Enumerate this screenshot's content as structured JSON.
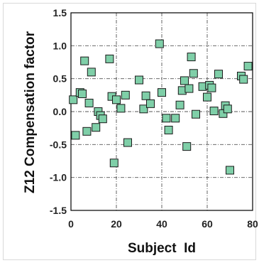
{
  "chart_data": {
    "type": "scatter",
    "title": "",
    "xlabel": "Subject  Id",
    "ylabel": "Z12 Compensation factor",
    "xlim": [
      0,
      80
    ],
    "ylim": [
      -1.5,
      1.5
    ],
    "x_ticks": [
      "0",
      "20",
      "40",
      "60",
      "80"
    ],
    "y_ticks": [
      "1.5",
      "1.0",
      "0.5",
      "0.0",
      "-0.5",
      "-1.0",
      "-1.5"
    ],
    "x_tick_values": [
      0,
      20,
      40,
      60,
      80
    ],
    "y_tick_values": [
      1.5,
      1.0,
      0.5,
      0.0,
      -0.5,
      -1.0,
      -1.5
    ],
    "grid": true,
    "grid_style": "dash-dot",
    "legend": "none",
    "marker": "square",
    "marker_fill": "#7fcfa8",
    "marker_edge": "#1a1a1a",
    "points": [
      {
        "x": 1,
        "y": 0.18
      },
      {
        "x": 2,
        "y": -0.36
      },
      {
        "x": 4,
        "y": 0.29
      },
      {
        "x": 5,
        "y": 0.27
      },
      {
        "x": 6,
        "y": 0.77
      },
      {
        "x": 7,
        "y": -0.3
      },
      {
        "x": 8,
        "y": 0.13
      },
      {
        "x": 9,
        "y": 0.6
      },
      {
        "x": 11,
        "y": -0.24
      },
      {
        "x": 12,
        "y": 0.0
      },
      {
        "x": 13,
        "y": -0.06
      },
      {
        "x": 14,
        "y": -0.11
      },
      {
        "x": 17,
        "y": 0.8
      },
      {
        "x": 18,
        "y": 0.23
      },
      {
        "x": 19,
        "y": -0.78
      },
      {
        "x": 20,
        "y": 0.18
      },
      {
        "x": 22,
        "y": 0.05
      },
      {
        "x": 24,
        "y": 0.25
      },
      {
        "x": 25,
        "y": -0.47
      },
      {
        "x": 30,
        "y": 0.48
      },
      {
        "x": 32,
        "y": 0.04
      },
      {
        "x": 33,
        "y": 0.24
      },
      {
        "x": 35,
        "y": 0.12
      },
      {
        "x": 39,
        "y": 1.03
      },
      {
        "x": 40,
        "y": 0.29
      },
      {
        "x": 42,
        "y": -0.1
      },
      {
        "x": 43,
        "y": -0.28
      },
      {
        "x": 46,
        "y": -0.1
      },
      {
        "x": 48,
        "y": 0.1
      },
      {
        "x": 49,
        "y": 0.32
      },
      {
        "x": 50,
        "y": 0.47
      },
      {
        "x": 51,
        "y": -0.53
      },
      {
        "x": 52,
        "y": 0.35
      },
      {
        "x": 53,
        "y": 0.83
      },
      {
        "x": 54,
        "y": 0.58
      },
      {
        "x": 55,
        "y": -0.04
      },
      {
        "x": 58,
        "y": 0.38
      },
      {
        "x": 60,
        "y": 0.22
      },
      {
        "x": 61,
        "y": 0.4
      },
      {
        "x": 62,
        "y": 0.36
      },
      {
        "x": 63,
        "y": 0.01
      },
      {
        "x": 65,
        "y": 0.57
      },
      {
        "x": 67,
        "y": -0.03
      },
      {
        "x": 68,
        "y": 0.09
      },
      {
        "x": 69,
        "y": 0.04
      },
      {
        "x": 70,
        "y": -0.89
      },
      {
        "x": 75,
        "y": 0.54
      },
      {
        "x": 76,
        "y": 0.49
      },
      {
        "x": 78,
        "y": 0.69
      }
    ]
  }
}
